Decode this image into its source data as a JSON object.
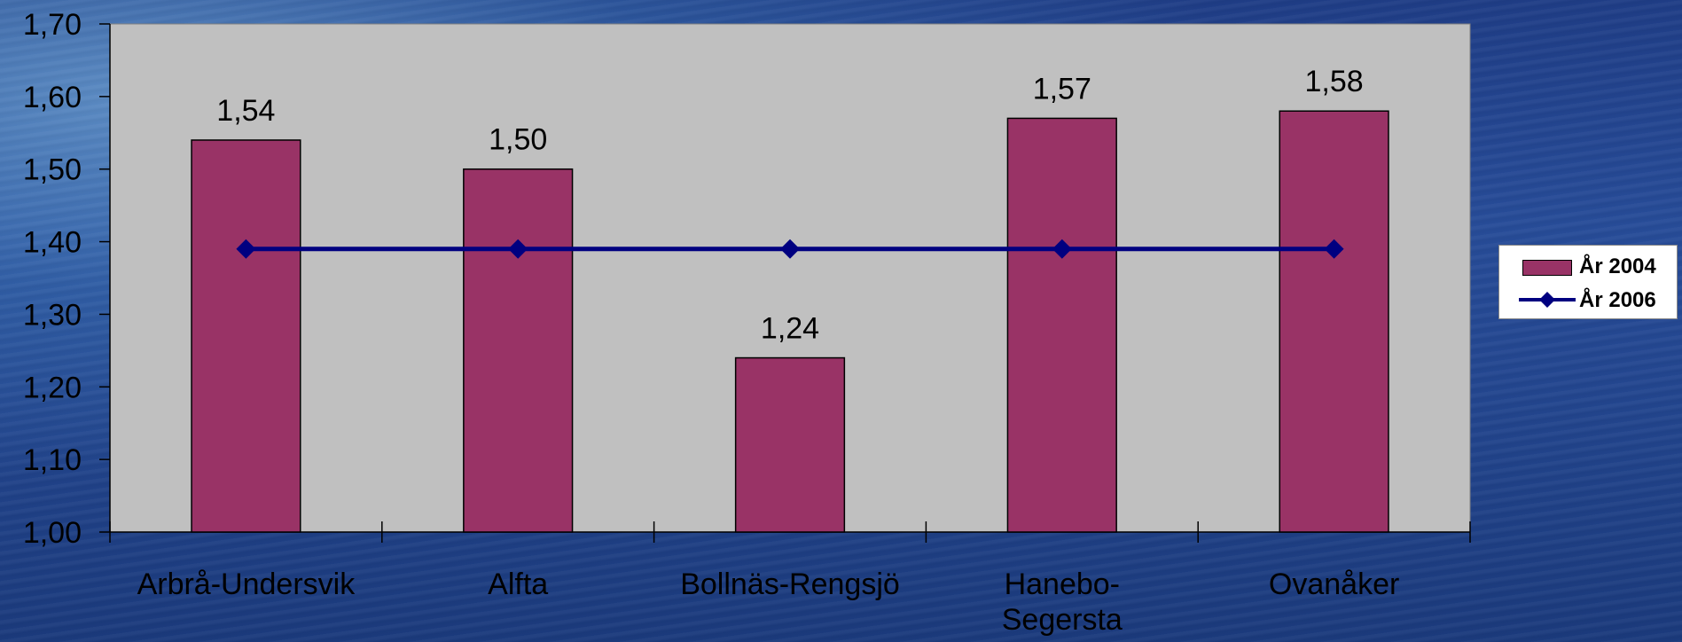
{
  "chart_data": {
    "type": "bar",
    "categories": [
      "Arbrå-Undersvik",
      "Alfta",
      "Bollnäs-Rengsjö",
      "Hanebo-Segersta",
      "Ovanåker"
    ],
    "category_label_lines": [
      [
        "Arbrå-Undersvik"
      ],
      [
        "Alfta"
      ],
      [
        "Bollnäs-Rengsjö"
      ],
      [
        "Hanebo-",
        "Segersta"
      ],
      [
        "Ovanåker"
      ]
    ],
    "series": [
      {
        "name": "År 2004",
        "type": "bar",
        "values": [
          1.54,
          1.5,
          1.24,
          1.57,
          1.58
        ],
        "color": "#993366",
        "data_labels": [
          "1,54",
          "1,50",
          "1,24",
          "1,57",
          "1,58"
        ]
      },
      {
        "name": "År 2006",
        "type": "line",
        "values": [
          1.39,
          1.39,
          1.39,
          1.39,
          1.39
        ],
        "color": "#000080",
        "marker": "diamond"
      }
    ],
    "ylim": [
      1.0,
      1.7
    ],
    "yticks": [
      1.0,
      1.1,
      1.2,
      1.3,
      1.4,
      1.5,
      1.6,
      1.7
    ],
    "ytick_labels": [
      "1,00",
      "1,10",
      "1,20",
      "1,30",
      "1,40",
      "1,50",
      "1,60",
      "1,70"
    ],
    "title": "",
    "xlabel": "",
    "ylabel": "",
    "legend_position": "right",
    "plot_background": "#c0c0c0"
  },
  "legend": {
    "items": [
      {
        "label": "År 2004",
        "swatch": "bar",
        "color": "#993366"
      },
      {
        "label": "År 2006",
        "swatch": "line-diamond",
        "color": "#000080"
      }
    ]
  }
}
